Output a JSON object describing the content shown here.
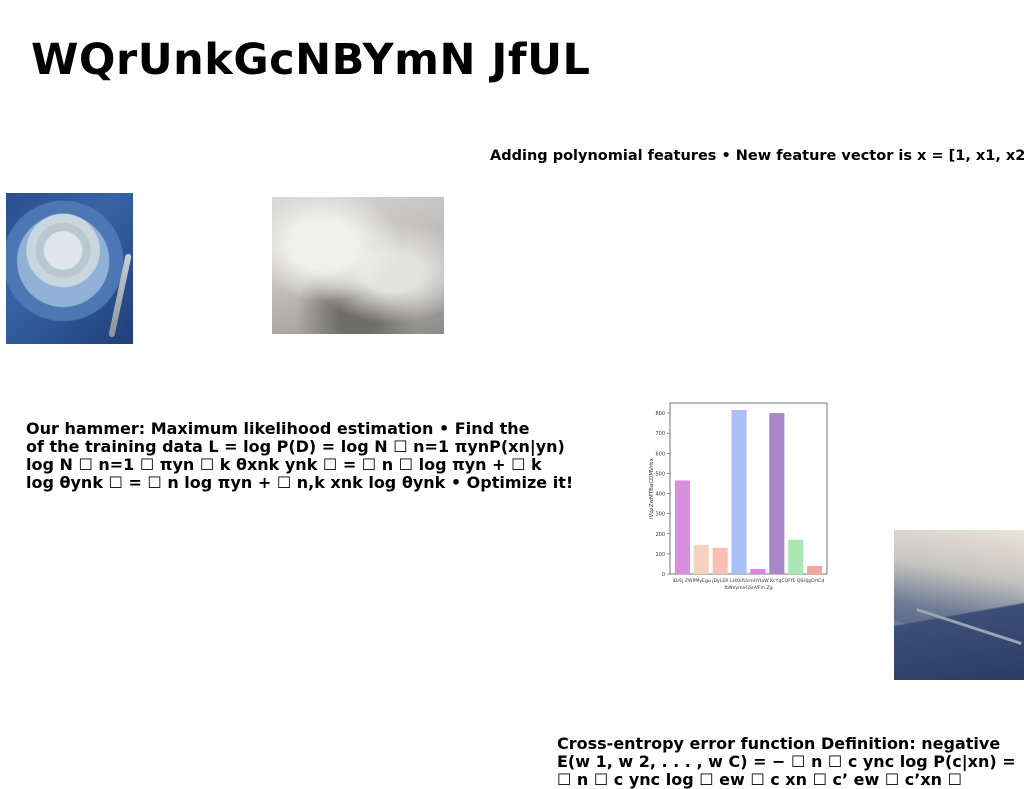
{
  "title": "WQrUnkGcNBYmN JfUL",
  "top_snippet": "Adding polynomial features • New feature vector is x = [1, x1, x2,",
  "left_paragraph": [
    "Our hammer: Maximum likelihood estimation • Find the",
    "of the training data L = log P(D) = log N ☐ n=1 πynP(xn|yn)",
    "log N ☐ n=1 ☐ πyn ☐ k θxnk ynk ☐ = ☐ n ☐ log πyn + ☐ k",
    "log θynk ☐ = ☐ n log πyn + ☐ n,k xnk log θynk • Optimize it!"
  ],
  "bottom_paragraph": [
    "Cross-entropy error function Definition: negative",
    "E(w 1, w 2, . . . , w C) = − ☐ n ☐ c ync log P(c|xn) =",
    "☐ n ☐ c ync log ☐ ew ☐ c xn ☐ c’ ew ☐ c’xn ☐"
  ],
  "images": {
    "plate": "table-setting-photo",
    "cloud": "cloud-photo",
    "mountain": "mountain-valley-photo"
  },
  "chart_data": {
    "type": "bar",
    "categories": [
      "iDrEj",
      "ZWPMyEgu",
      "jDyLER",
      "LHXkfUcmHYIaW",
      "fbNVymnGSnVFm",
      "KcYqCQFfE",
      "QSHjgOrtCd",
      "Zg"
    ],
    "tick_labels_row1": [
      "iDrEj",
      "ZWPMyEgu",
      "jDyLER",
      "LHXkfUcmHYIaW",
      "KcYqCQFfE",
      "QSHjgOrtCd"
    ],
    "tick_labels_row2": [
      "fbNVymnGSnVFm",
      "Zg"
    ],
    "values": [
      465,
      145,
      130,
      815,
      25,
      800,
      170,
      40
    ],
    "colors": [
      "#d98fe0",
      "#f5d3c0",
      "#fbc0b5",
      "#a9bff7",
      "#e27fe8",
      "#a887c9",
      "#a8e6b2",
      "#f2a6a0"
    ],
    "ylabel": "iVqzZwMTBaCDMVrbx",
    "yticks": [
      0,
      100,
      200,
      300,
      400,
      500,
      600,
      700,
      800
    ],
    "ylim": [
      0,
      850
    ],
    "title": "",
    "xlabel": "",
    "grid": false
  }
}
